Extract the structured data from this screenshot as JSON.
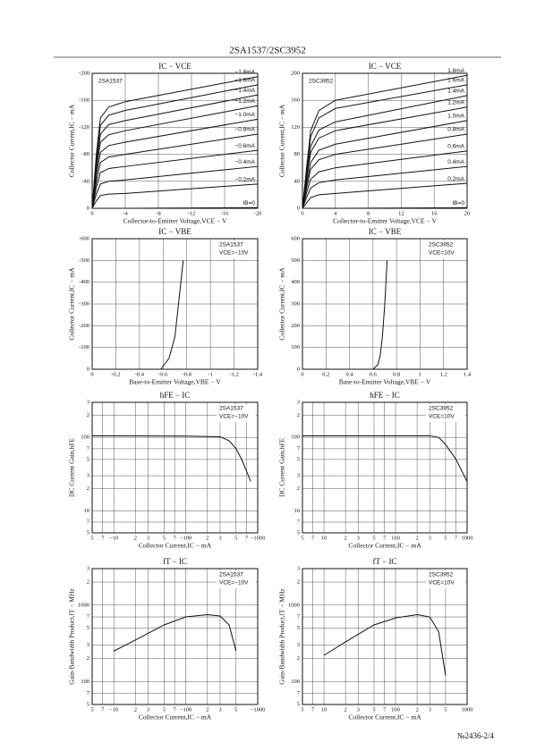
{
  "header": {
    "title": "2SA1537/2SC3952"
  },
  "footer": {
    "page": "№2436-2/4"
  },
  "chart_data": [
    {
      "type": "line",
      "title": "IC − VCE",
      "device": "2SA1537",
      "xlabel": "Collector-to-Emitter Voltage,VCE − V",
      "ylabel": "Collector Current,IC − mA",
      "color": "#111",
      "grid": true,
      "label_side": "left",
      "xlim": [
        0,
        -20
      ],
      "ylim": [
        0,
        -200
      ],
      "xticks": [
        0,
        -4,
        -8,
        -12,
        -16,
        -20
      ],
      "yticks": [
        0,
        -40,
        -80,
        -120,
        -160,
        -200
      ],
      "x": [
        0,
        -0.5,
        -1,
        -2,
        -4,
        -20
      ],
      "series": [
        {
          "name": "−1.8mA",
          "values": [
            0,
            -79,
            -134,
            -150,
            -158,
            -195
          ]
        },
        {
          "name": "−1.6mA",
          "values": [
            0,
            -72,
            -123,
            -138,
            -145,
            -183
          ]
        },
        {
          "name": "−1.4mA",
          "values": [
            0,
            -65,
            -110,
            -124,
            -130,
            -168
          ]
        },
        {
          "name": "−1.2mA",
          "values": [
            0,
            -57,
            -98,
            -109,
            -115,
            -152
          ]
        },
        {
          "name": "−1.0mA",
          "values": [
            0,
            -49,
            -83,
            -93,
            -98,
            -132
          ]
        },
        {
          "name": "−0.8mA",
          "values": [
            0,
            -40,
            -68,
            -76,
            -80,
            -110
          ]
        },
        {
          "name": "−0.6mA",
          "values": [
            0,
            -31,
            -53,
            -59,
            -62,
            -86
          ]
        },
        {
          "name": "−0.4mA",
          "values": [
            0,
            -21,
            -36,
            -40,
            -42,
            -62
          ]
        },
        {
          "name": "−0.2mA",
          "values": [
            0,
            -11,
            -19,
            -21,
            -22,
            -36
          ]
        },
        {
          "name": "IB=0",
          "values": [
            0,
            0,
            0,
            0,
            0,
            -1
          ]
        }
      ]
    },
    {
      "type": "line",
      "title": "IC − VCE",
      "device": "2SC3952",
      "xlabel": "Collector-to-Emitter Voltage,VCE − V",
      "ylabel": "Collector Current,IC − mA",
      "color": "#111",
      "grid": true,
      "label_side": "left",
      "xlim": [
        0,
        20
      ],
      "ylim": [
        0,
        200
      ],
      "xticks": [
        0,
        4,
        8,
        12,
        16,
        20
      ],
      "yticks": [
        0,
        40,
        80,
        120,
        160,
        200
      ],
      "x": [
        0,
        0.5,
        1,
        2,
        4,
        20
      ],
      "series": [
        {
          "name": "1.8mA",
          "values": [
            0,
            60,
            115,
            145,
            160,
            197
          ]
        },
        {
          "name": "1.6mA",
          "values": [
            0,
            55,
            106,
            134,
            148,
            183
          ]
        },
        {
          "name": "1.4mA",
          "values": [
            0,
            48,
            92,
            116,
            128,
            167
          ]
        },
        {
          "name": "1.2mA",
          "values": [
            0,
            43,
            83,
            104,
            115,
            150
          ]
        },
        {
          "name": "1.0mA",
          "values": [
            0,
            36,
            68,
            86,
            95,
            130
          ]
        },
        {
          "name": "0.8mA",
          "values": [
            0,
            30,
            58,
            72,
            80,
            110
          ]
        },
        {
          "name": "0.6mA",
          "values": [
            0,
            23,
            43,
            54,
            60,
            85
          ]
        },
        {
          "name": "0.4mA",
          "values": [
            0,
            16,
            30,
            38,
            42,
            62
          ]
        },
        {
          "name": "0.2mA",
          "values": [
            0,
            8,
            16,
            20,
            22,
            37
          ]
        },
        {
          "name": "IB=0",
          "values": [
            0,
            0,
            0,
            0,
            0,
            1
          ]
        }
      ]
    },
    {
      "type": "line",
      "title": "IC − VBE",
      "device": "2SA1537",
      "condition": "VCE=−10V",
      "xlabel": "Base-to-Emitter Voltage,VBE − V",
      "ylabel": "Collector Current,IC − mA",
      "color": "#111",
      "grid": true,
      "label_side": "right",
      "xlim": [
        0,
        -1.4
      ],
      "ylim": [
        0,
        -600
      ],
      "xticks": [
        0,
        -0.2,
        -0.4,
        -0.6,
        -0.8,
        -1,
        -1.2,
        -1.4
      ],
      "yticks": [
        0,
        -100,
        -200,
        -300,
        -400,
        -500,
        -600
      ],
      "x": [
        -0.58,
        -0.65,
        -0.7,
        -0.73,
        -0.77
      ],
      "series": [
        {
          "values": [
            0,
            -50,
            -150,
            -300,
            -500
          ]
        }
      ]
    },
    {
      "type": "line",
      "title": "IC − VBE",
      "device": "2SC3952",
      "condition": "VCE=10V",
      "xlabel": "Base-to-Emitter Voltage,VBE − V",
      "ylabel": "Collector Current,IC − mA",
      "color": "#111",
      "grid": true,
      "label_side": "right",
      "xlim": [
        0,
        1.4
      ],
      "ylim": [
        0,
        600
      ],
      "xticks": [
        0,
        0.2,
        0.4,
        0.6,
        0.8,
        1,
        1.2,
        1.4
      ],
      "yticks": [
        0,
        100,
        200,
        300,
        400,
        500,
        600
      ],
      "x": [
        0.6,
        0.64,
        0.66,
        0.68,
        0.7,
        0.72
      ],
      "series": [
        {
          "values": [
            0,
            20,
            60,
            150,
            300,
            500
          ]
        }
      ]
    },
    {
      "type": "line",
      "title": "hFE − IC",
      "device": "2SA1537",
      "condition": "VCE=−10V",
      "xlabel": "Collector Current,IC − mA",
      "ylabel": "DC Current Gain,hFE",
      "color": "#111",
      "grid": true,
      "xscale": "log",
      "yscale": "log",
      "label_side": "right",
      "xlim": [
        -5,
        -1000
      ],
      "ylim": [
        5,
        300
      ],
      "xticks": [
        {
          "value": -5,
          "label": "5"
        },
        {
          "value": -7,
          "label": "7"
        },
        {
          "value": -10,
          "label": "−10"
        },
        {
          "value": -20,
          "label": "2"
        },
        {
          "value": -30,
          "label": "3"
        },
        {
          "value": -50,
          "label": "5"
        },
        {
          "value": -70,
          "label": "7"
        },
        {
          "value": -100,
          "label": "−100"
        },
        {
          "value": -200,
          "label": "2"
        },
        {
          "value": -300,
          "label": "3"
        },
        {
          "value": -500,
          "label": "5"
        },
        {
          "value": -700,
          "label": "7"
        },
        {
          "value": -1000,
          "label": "−1000"
        }
      ],
      "yticks": [
        5,
        7,
        10,
        {
          "value": 20,
          "label": "2"
        },
        {
          "value": 30,
          "label": "3"
        },
        {
          "value": 50,
          "label": "5"
        },
        {
          "value": 70,
          "label": "7"
        },
        100,
        {
          "value": 200,
          "label": "2"
        },
        {
          "value": 300,
          "label": "3"
        }
      ],
      "x": [
        -5,
        -100,
        -300,
        -400,
        -500,
        -600,
        -800
      ],
      "series": [
        {
          "values": [
            105,
            104,
            102,
            90,
            70,
            50,
            25
          ]
        }
      ]
    },
    {
      "type": "line",
      "title": "hFE − IC",
      "device": "2SC3952",
      "condition": "VCE=10V",
      "xlabel": "Collector Current,IC − mA",
      "ylabel": "DC Current Gain,hFE",
      "color": "#111",
      "grid": true,
      "xscale": "log",
      "yscale": "log",
      "label_side": "right",
      "xlim": [
        5,
        1000
      ],
      "ylim": [
        5,
        300
      ],
      "xticks": [
        5,
        7,
        10,
        {
          "value": 20,
          "label": "2"
        },
        {
          "value": 30,
          "label": "3"
        },
        {
          "value": 50,
          "label": "5"
        },
        {
          "value": 70,
          "label": "7"
        },
        100,
        {
          "value": 200,
          "label": "2"
        },
        {
          "value": 300,
          "label": "3"
        },
        {
          "value": 500,
          "label": "5"
        },
        {
          "value": 700,
          "label": "7"
        },
        1000
      ],
      "yticks": [
        5,
        7,
        10,
        {
          "value": 20,
          "label": "2"
        },
        {
          "value": 30,
          "label": "3"
        },
        {
          "value": 50,
          "label": "5"
        },
        {
          "value": 70,
          "label": "7"
        },
        100,
        {
          "value": 200,
          "label": "2"
        },
        {
          "value": 300,
          "label": "3"
        }
      ],
      "x": [
        5,
        300,
        400,
        500,
        700,
        1000
      ],
      "series": [
        {
          "values": [
            105,
            105,
            100,
            80,
            50,
            25
          ]
        }
      ]
    },
    {
      "type": "line",
      "title": "fT − IC",
      "device": "2SA1537",
      "condition": "VCE=−10V",
      "xlabel": "Collector Current,IC − mA",
      "ylabel": "Gain-Bandwidth Product,fT − MHz",
      "color": "#111",
      "grid": true,
      "xscale": "log",
      "yscale": "log",
      "label_side": "right",
      "xlim": [
        -5,
        -1000
      ],
      "ylim": [
        50,
        3000
      ],
      "xticks": [
        {
          "value": -5,
          "label": "5"
        },
        {
          "value": -7,
          "label": "7"
        },
        {
          "value": -10,
          "label": "−10"
        },
        {
          "value": -20,
          "label": "2"
        },
        {
          "value": -30,
          "label": "3"
        },
        {
          "value": -50,
          "label": "5"
        },
        {
          "value": -70,
          "label": "7"
        },
        {
          "value": -100,
          "label": "−100"
        },
        {
          "value": -200,
          "label": "2"
        },
        {
          "value": -300,
          "label": "3"
        },
        {
          "value": -500,
          "label": "5"
        },
        {
          "value": -1000,
          "label": "−1000"
        }
      ],
      "yticks": [
        {
          "value": 50,
          "label": "5"
        },
        {
          "value": 70,
          "label": "7"
        },
        100,
        {
          "value": 200,
          "label": "2"
        },
        {
          "value": 300,
          "label": "3"
        },
        {
          "value": 500,
          "label": "5"
        },
        {
          "value": 700,
          "label": "7"
        },
        1000,
        {
          "value": 2000,
          "label": "2"
        },
        {
          "value": 3000,
          "label": "3"
        }
      ],
      "x": [
        -10,
        -20,
        -50,
        -100,
        -200,
        -300,
        -400,
        -500
      ],
      "series": [
        {
          "values": [
            250,
            350,
            550,
            700,
            750,
            720,
            550,
            250
          ]
        }
      ]
    },
    {
      "type": "line",
      "title": "fT − IC",
      "device": "2SC3952",
      "condition": "VCE=10V",
      "xlabel": "Collector Current,IC − mA",
      "ylabel": "Gain-Bandwidth Product,fT − MHz",
      "color": "#111",
      "grid": true,
      "xscale": "log",
      "yscale": "log",
      "label_side": "right",
      "xlim": [
        5,
        1000
      ],
      "ylim": [
        50,
        3000
      ],
      "xticks": [
        5,
        7,
        10,
        {
          "value": 20,
          "label": "2"
        },
        {
          "value": 30,
          "label": "3"
        },
        {
          "value": 50,
          "label": "5"
        },
        {
          "value": 70,
          "label": "7"
        },
        100,
        {
          "value": 200,
          "label": "2"
        },
        {
          "value": 300,
          "label": "3"
        },
        {
          "value": 500,
          "label": "5"
        },
        1000
      ],
      "yticks": [
        {
          "value": 50,
          "label": "5"
        },
        {
          "value": 70,
          "label": "7"
        },
        100,
        {
          "value": 200,
          "label": "2"
        },
        {
          "value": 300,
          "label": "3"
        },
        {
          "value": 500,
          "label": "5"
        },
        {
          "value": 700,
          "label": "7"
        },
        1000,
        {
          "value": 2000,
          "label": "2"
        },
        {
          "value": 3000,
          "label": "3"
        }
      ],
      "x": [
        10,
        20,
        50,
        100,
        200,
        300,
        400,
        500
      ],
      "series": [
        {
          "values": [
            220,
            330,
            550,
            680,
            750,
            700,
            450,
            120
          ]
        }
      ]
    }
  ]
}
